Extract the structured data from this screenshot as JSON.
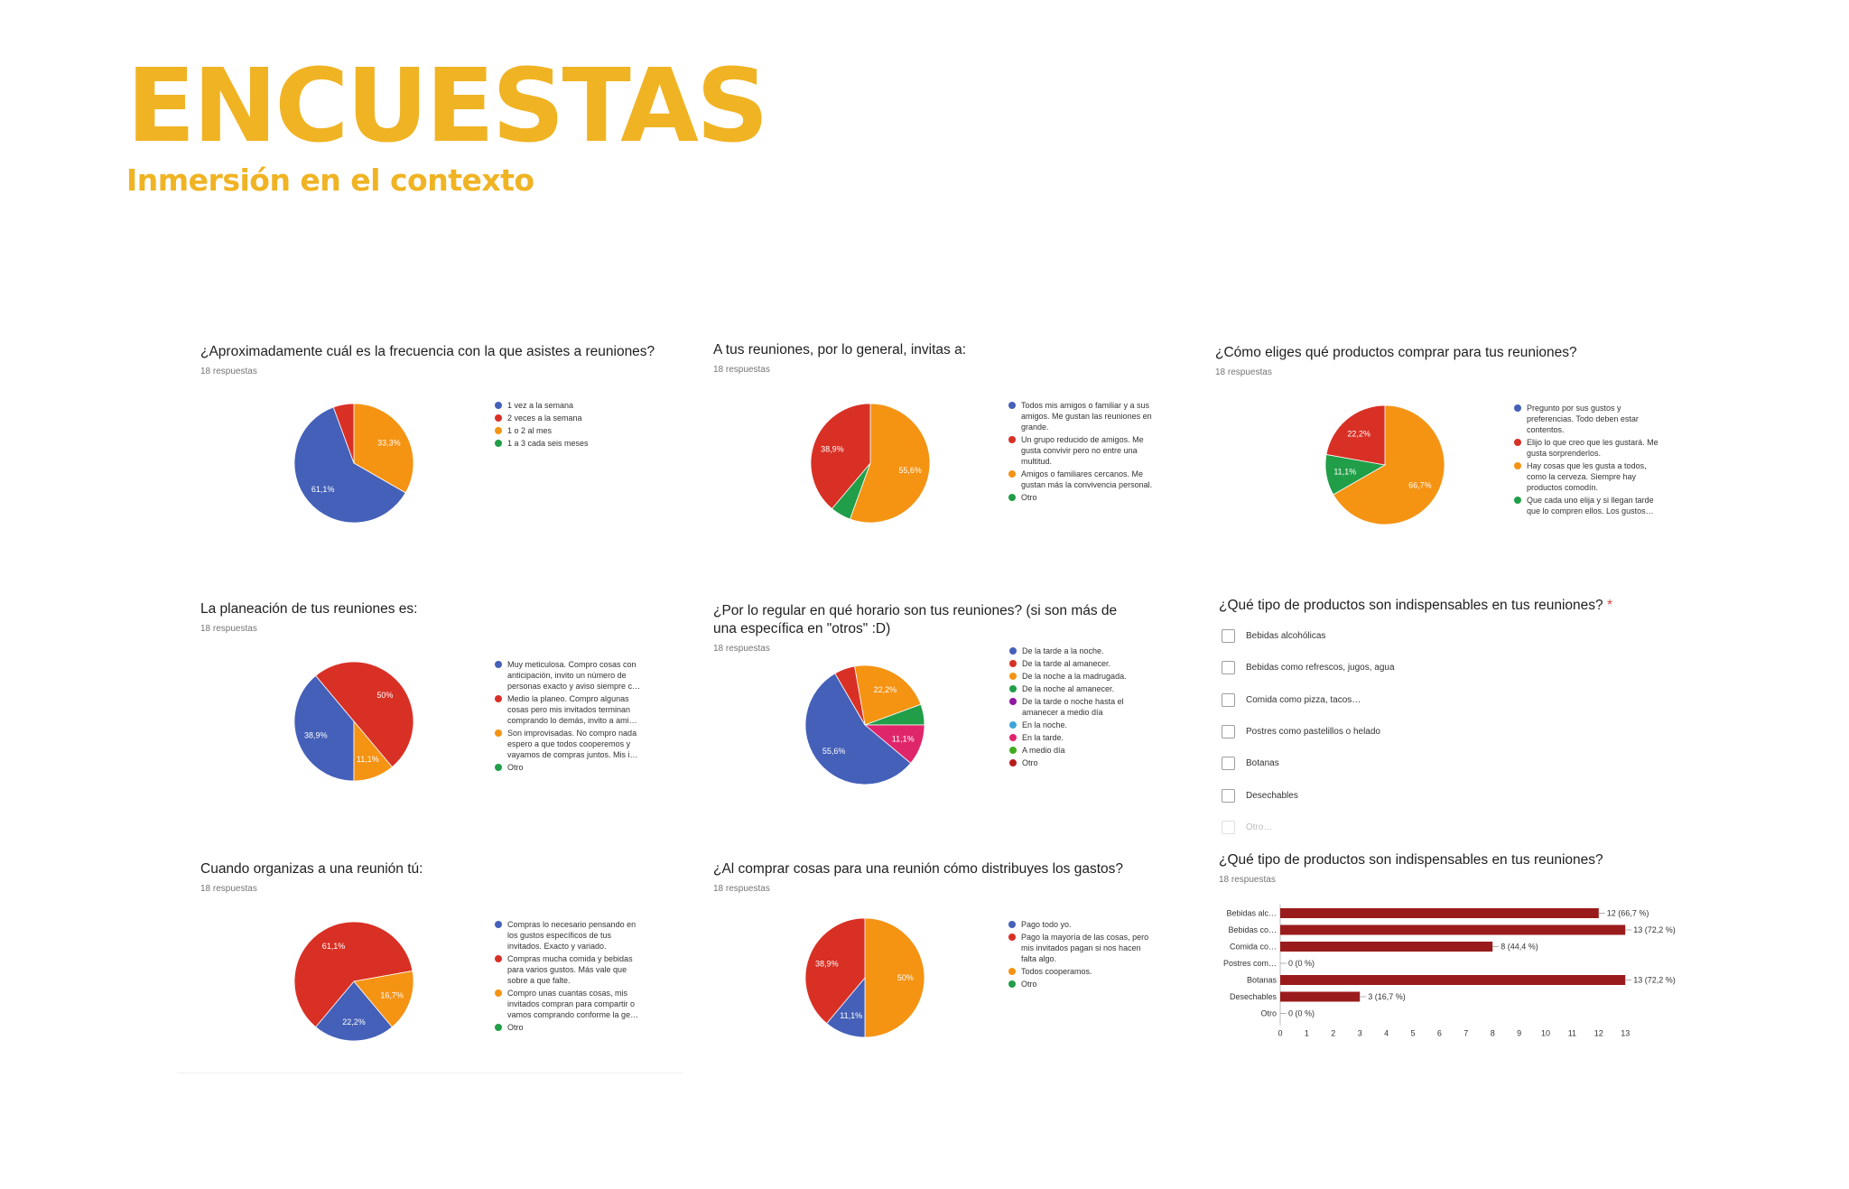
{
  "header": {
    "title": "ENCUESTAS",
    "subtitle": "Inmersión en el contexto"
  },
  "colors": {
    "title": "#f0b323",
    "blue": "#4460b8",
    "red": "#d93025",
    "orange": "#f59313",
    "green": "#219e48",
    "purple": "#8e1aa0",
    "lightblue": "#3fa5d9",
    "pink": "#e0266b",
    "lime": "#3fac1d",
    "darkred": "#b71c1c",
    "bar": "#9a1b1b"
  },
  "chart_data": [
    {
      "type": "pie",
      "title": "¿Aproximadamente cuál es la frecuencia con la que asistes a reuniones?",
      "responses": "18 respuestas",
      "slices": [
        {
          "label": "1 vez a la semana",
          "value": 61.1,
          "color": "blue",
          "text": "61,1%"
        },
        {
          "label": "2 veces a la semana",
          "value": 5.6,
          "color": "red",
          "text": ""
        },
        {
          "label": "1 o 2 al mes",
          "value": 33.3,
          "color": "orange",
          "text": "33,3%"
        },
        {
          "label": "1 a 3 cada seis meses",
          "value": 0,
          "color": "green",
          "text": ""
        }
      ]
    },
    {
      "type": "pie",
      "title": "A tus reuniones, por lo general, invitas a:",
      "responses": "18 respuestas",
      "slices": [
        {
          "label": "Todos mis amigos o familiar y a sus amigos. Me gustan las reuniones en grande.",
          "value": 0,
          "color": "blue",
          "text": ""
        },
        {
          "label": "Un grupo reducido de amigos. Me gusta convivir pero no entre una multitud.",
          "value": 38.9,
          "color": "red",
          "text": "38,9%"
        },
        {
          "label": "Amigos o familiares cercanos. Me gustan más la convivencia personal.",
          "value": 55.6,
          "color": "orange",
          "text": "55,6%"
        },
        {
          "label": "Otro",
          "value": 5.6,
          "color": "green",
          "text": ""
        }
      ]
    },
    {
      "type": "pie",
      "title": "¿Cómo eliges qué productos comprar para tus reuniones?",
      "responses": "18 respuestas",
      "slices": [
        {
          "label": "Pregunto por sus gustos y preferencias. Todo deben estar contentos.",
          "value": 0,
          "color": "blue",
          "text": ""
        },
        {
          "label": "Elijo lo que creo que les gustará. Me gusta sorprenderlos.",
          "value": 22.2,
          "color": "red",
          "text": "22,2%"
        },
        {
          "label": "Hay cosas que les gusta a todos, como la cerveza. Siempre hay productos comodín.",
          "value": 66.7,
          "color": "orange",
          "text": "66,7%"
        },
        {
          "label": "Que cada uno elija y si llegan tarde que lo compren ellos. Los gustos…",
          "value": 11.1,
          "color": "green",
          "text": "11,1%"
        }
      ]
    },
    {
      "type": "pie",
      "title": "La planeación de tus reuniones es:",
      "responses": "18 respuestas",
      "slices": [
        {
          "label": "Muy meticulosa. Compro cosas con anticipación, invito un número de personas exacto y aviso siempre c…",
          "value": 38.9,
          "color": "blue",
          "text": "38,9%"
        },
        {
          "label": "Medio la planeo. Compro algunas cosas pero mis invitados terminan comprando lo demás, invito a ami…",
          "value": 50,
          "color": "red",
          "text": "50%"
        },
        {
          "label": "Son improvisadas. No compro nada espero a que todos cooperemos y vayamos de compras juntos. Mis i…",
          "value": 11.1,
          "color": "orange",
          "text": "11,1%"
        },
        {
          "label": "Otro",
          "value": 0,
          "color": "green",
          "text": ""
        }
      ]
    },
    {
      "type": "pie",
      "title": "¿Por lo regular en qué horario son tus reuniones? (si son más de una específica en \"otros\" :D)",
      "responses": "18 respuestas",
      "slices": [
        {
          "label": "De la tarde a la noche.",
          "value": 55.6,
          "color": "blue",
          "text": "55,6%"
        },
        {
          "label": "De la tarde al amanecer.",
          "value": 5.6,
          "color": "red",
          "text": ""
        },
        {
          "label": "De la noche a la madrugada.",
          "value": 22.2,
          "color": "orange",
          "text": "22,2%"
        },
        {
          "label": "De la noche al amanecer.",
          "value": 5.6,
          "color": "green",
          "text": ""
        },
        {
          "label": "De la tarde o noche hasta el amanecer a medio día",
          "value": 0,
          "color": "purple",
          "text": ""
        },
        {
          "label": "En la noche.",
          "value": 0,
          "color": "lightblue",
          "text": ""
        },
        {
          "label": "En la tarde.",
          "value": 11.1,
          "color": "pink",
          "text": "11,1%"
        },
        {
          "label": "A medio día",
          "value": 0,
          "color": "lime",
          "text": ""
        },
        {
          "label": "Otro",
          "value": 0,
          "color": "darkred",
          "text": ""
        }
      ]
    },
    {
      "type": "pie",
      "title": "Cuando organizas a una reunión tú:",
      "responses": "18 respuestas",
      "slices": [
        {
          "label": "Compras lo necesario pensando en los gustos específicos de tus invitados. Exacto y variado.",
          "value": 22.2,
          "color": "blue",
          "text": "22,2%"
        },
        {
          "label": "Compras mucha comida y bebidas para varios gustos. Más vale que sobre a que falte.",
          "value": 61.1,
          "color": "red",
          "text": "61,1%"
        },
        {
          "label": "Compro unas cuantas cosas, mis invitados compran para compartir o vamos comprando conforme la ge…",
          "value": 16.7,
          "color": "orange",
          "text": "16,7%"
        },
        {
          "label": "Otro",
          "value": 0,
          "color": "green",
          "text": ""
        }
      ]
    },
    {
      "type": "pie",
      "title": "¿Al comprar cosas para una reunión cómo distribuyes los gastos?",
      "responses": "18 respuestas",
      "slices": [
        {
          "label": "Pago todo yo.",
          "value": 11.1,
          "color": "blue",
          "text": "11,1%"
        },
        {
          "label": "Pago la mayoría de las cosas, pero mis invitados pagan si nos hacen falta algo.",
          "value": 38.9,
          "color": "red",
          "text": "38,9%"
        },
        {
          "label": "Todos cooperamos.",
          "value": 50,
          "color": "orange",
          "text": "50%"
        },
        {
          "label": "Otro",
          "value": 0,
          "color": "green",
          "text": ""
        }
      ]
    },
    {
      "type": "bar",
      "orientation": "horizontal",
      "title": "¿Qué tipo de productos son indispensables en tus reuniones?",
      "responses": "18 respuestas",
      "categories": [
        "Bebidas alc…",
        "Bebidas co…",
        "Comida co…",
        "Postres com…",
        "Botanas",
        "Desechables",
        "Otro"
      ],
      "values": [
        12,
        13,
        8,
        0,
        13,
        3,
        0
      ],
      "value_labels": [
        "12 (66,7 %)",
        "13 (72,2 %)",
        "8 (44,4 %)",
        "0 (0 %)",
        "13 (72,2 %)",
        "3 (16,7 %)",
        "0 (0 %)"
      ],
      "xticks": [
        "0",
        "1",
        "2",
        "3",
        "4",
        "5",
        "6",
        "7",
        "8",
        "9",
        "10",
        "11",
        "12",
        "13"
      ],
      "xlim": [
        0,
        13
      ]
    }
  ],
  "form": {
    "question": "¿Qué tipo de productos son indispensables en tus reuniones?",
    "required_mark": "*",
    "options": [
      "Bebidas alcohólicas",
      "Bebidas como refrescos, jugos, agua",
      "Comida como pizza, tacos…",
      "Postres como pastelillos o helado",
      "Botanas",
      "Desechables"
    ],
    "other": "Otro…"
  }
}
